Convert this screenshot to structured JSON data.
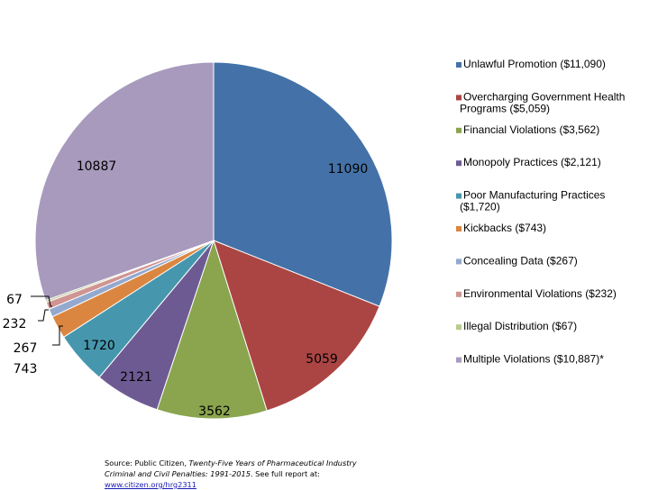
{
  "chart_data": {
    "type": "pie",
    "title": "",
    "categories": [
      "Unlawful Promotion ($11,090)",
      "Overcharging Government Health Programs ($5,059)",
      "Financial Violations ($3,562)",
      "Monopoly Practices ($2,121)",
      "Poor Manufacturing Practices ($1,720)",
      "Kickbacks ($743)",
      "Concealing Data ($267)",
      "Environmental Violations ($232)",
      "Illegal Distribution ($67)",
      "Multiple Violations ($10,887)*"
    ],
    "values": [
      11090,
      5059,
      3562,
      2121,
      1720,
      743,
      267,
      232,
      67,
      10887
    ],
    "data_labels": [
      "11090",
      "5059",
      "3562",
      "2121",
      "1720",
      "743",
      "267",
      "232",
      "67",
      "10887"
    ],
    "colors": [
      "#4472a8",
      "#ab4543",
      "#8aa54e",
      "#6e5a93",
      "#4697ae",
      "#db8640",
      "#93a9cf",
      "#d09492",
      "#b8cc8e",
      "#a89abd"
    ],
    "legend_position": "right"
  },
  "source": {
    "prefix": "Source: Public Citizen, ",
    "title": "Twenty-Five Years of Pharmaceutical Industry Criminal and Civil Penalties: 1991-2015",
    "middle": ". See full report at: ",
    "url": "www.citizen.org/hrg2311"
  }
}
